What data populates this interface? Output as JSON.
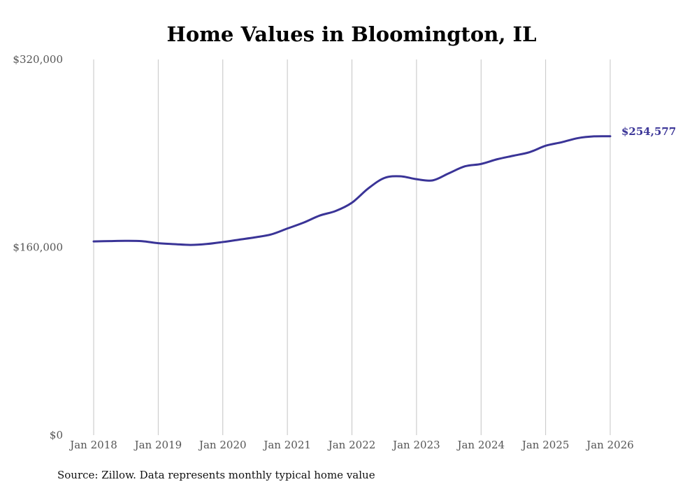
{
  "chart_data": {
    "type": "line",
    "title": "Home Values in Bloomington, IL",
    "xlabel": "",
    "ylabel": "",
    "ylim": [
      0,
      320000
    ],
    "yticks": [
      {
        "value": 0,
        "label": "$0"
      },
      {
        "value": 160000,
        "label": "$160,000"
      },
      {
        "value": 320000,
        "label": "$320,000"
      }
    ],
    "xlim": [
      2018,
      2026
    ],
    "xticks": [
      {
        "value": 2018,
        "label": "Jan 2018"
      },
      {
        "value": 2019,
        "label": "Jan 2019"
      },
      {
        "value": 2020,
        "label": "Jan 2020"
      },
      {
        "value": 2021,
        "label": "Jan 2021"
      },
      {
        "value": 2022,
        "label": "Jan 2022"
      },
      {
        "value": 2023,
        "label": "Jan 2023"
      },
      {
        "value": 2024,
        "label": "Jan 2024"
      },
      {
        "value": 2025,
        "label": "Jan 2025"
      },
      {
        "value": 2026,
        "label": "Jan 2026"
      }
    ],
    "grid": "vertical",
    "series": [
      {
        "name": "Typical home value",
        "color": "#3a3497",
        "end_label": "$254,577",
        "x": [
          2018.0,
          2018.25,
          2018.5,
          2018.75,
          2019.0,
          2019.25,
          2019.5,
          2019.75,
          2020.0,
          2020.25,
          2020.5,
          2020.75,
          2021.0,
          2021.25,
          2021.5,
          2021.75,
          2022.0,
          2022.25,
          2022.5,
          2022.75,
          2023.0,
          2023.25,
          2023.5,
          2023.75,
          2024.0,
          2024.25,
          2024.5,
          2024.75,
          2025.0,
          2025.25,
          2025.5,
          2025.75,
          2026.0
        ],
        "values": [
          165000,
          165300,
          165500,
          165200,
          163500,
          162700,
          162000,
          162800,
          164500,
          166500,
          168500,
          171000,
          176000,
          181000,
          187000,
          191000,
          198000,
          210000,
          219000,
          220500,
          218000,
          217000,
          223000,
          229000,
          231000,
          235000,
          238000,
          241000,
          246500,
          249500,
          253000,
          254500,
          254577
        ]
      }
    ]
  },
  "footer": {
    "source": "Source: Zillow. Data represents monthly typical home value"
  }
}
